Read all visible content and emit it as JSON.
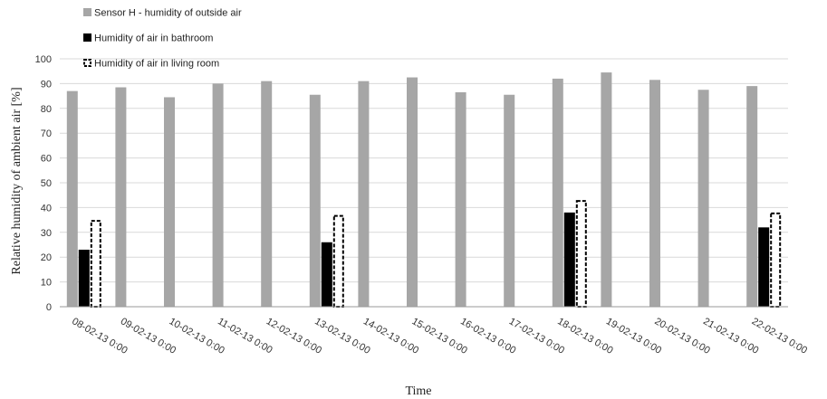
{
  "chart_data": {
    "type": "bar",
    "title": "",
    "xlabel": "Time",
    "ylabel": "Relative humidity of ambient air  [%]",
    "ylim": [
      0,
      100
    ],
    "yticks": [
      0,
      10,
      20,
      30,
      40,
      50,
      60,
      70,
      80,
      90,
      100
    ],
    "grid": true,
    "legend_position": "top-left",
    "categories": [
      "08-02-13 0:00",
      "09-02-13 0:00",
      "10-02-13 0:00",
      "11-02-13 0:00",
      "12-02-13 0:00",
      "13-02-13 0:00",
      "14-02-13 0:00",
      "15-02-13 0:00",
      "16-02-13 0:00",
      "17-02-13 0:00",
      "18-02-13 0:00",
      "19-02-13 0:00",
      "20-02-13 0:00",
      "21-02-13 0:00",
      "22-02-13 0:00"
    ],
    "series": [
      {
        "name": "Sensor H - humidity of outside air",
        "color": "#a6a6a6",
        "style": "solid",
        "values": [
          87,
          88.5,
          84.5,
          90,
          91,
          85.5,
          91,
          92.5,
          86.5,
          85.5,
          92,
          94.5,
          91.5,
          87.5,
          89
        ]
      },
      {
        "name": "Humidity of air in bathroom",
        "color": "#000000",
        "style": "solid",
        "values": [
          23,
          null,
          null,
          null,
          null,
          26,
          null,
          null,
          null,
          null,
          38,
          null,
          null,
          null,
          32
        ]
      },
      {
        "name": "Humidity of air in living room",
        "color": "#000000",
        "style": "dashed-outline",
        "values": [
          35,
          null,
          null,
          null,
          null,
          37,
          null,
          null,
          null,
          null,
          43,
          null,
          null,
          null,
          38
        ]
      }
    ]
  }
}
